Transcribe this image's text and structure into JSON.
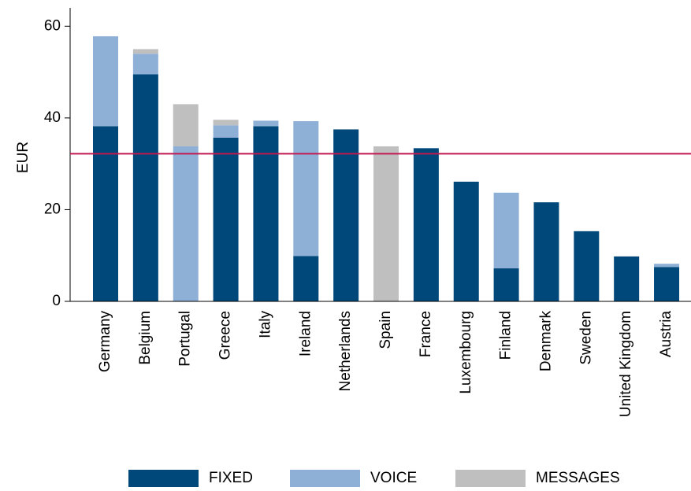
{
  "chart_data": {
    "type": "stacked_bar",
    "y_label": "EUR",
    "categories": [
      "Germany",
      "Belgium",
      "Portugal",
      "Greece",
      "Italy",
      "Ireland",
      "Netherlands",
      "Spain",
      "France",
      "Luxembourg",
      "Finland",
      "Denmark",
      "Sweden",
      "United Kingdom",
      "Austria"
    ],
    "series": [
      {
        "name": "FIXED",
        "color": "#00487a",
        "values": [
          38.2,
          49.5,
          0,
          35.7,
          38.2,
          9.9,
          37.5,
          0,
          33.4,
          26.1,
          7.2,
          21.6,
          15.3,
          9.8,
          7.5
        ]
      },
      {
        "name": "VOICE",
        "color": "#8fb0d6",
        "values": [
          19.6,
          4.5,
          33.8,
          2.7,
          1.2,
          29.4,
          0,
          0,
          0,
          0,
          16.5,
          0,
          0,
          0,
          0.7
        ]
      },
      {
        "name": "MESSAGES",
        "color": "#bfbfbf",
        "values": [
          0,
          1.0,
          9.2,
          1.2,
          0,
          0,
          0,
          33.8,
          0,
          0,
          0,
          0,
          0,
          0,
          0
        ]
      }
    ],
    "hline": 32.2,
    "hline_color": "#c0184f",
    "ylim": [
      0,
      64
    ],
    "yticks": [
      0,
      20,
      40,
      60
    ],
    "grid": false,
    "legend": "bottom"
  }
}
